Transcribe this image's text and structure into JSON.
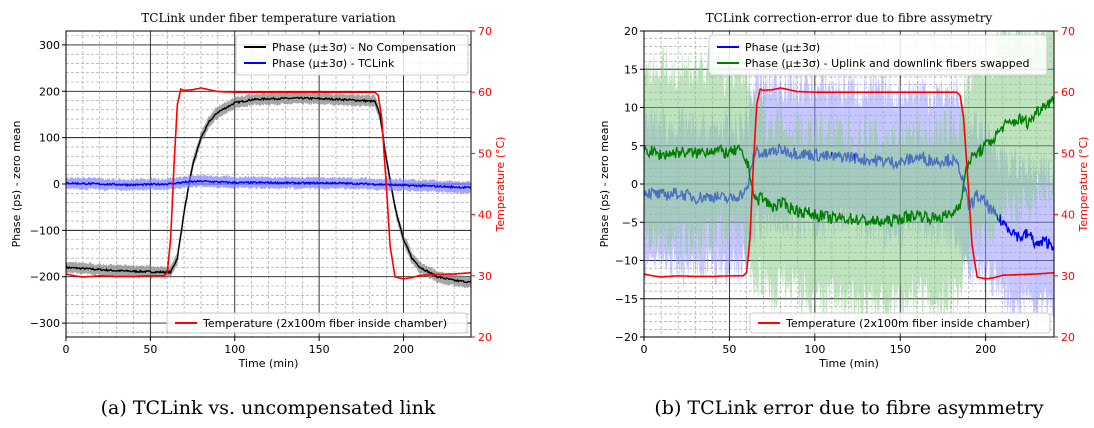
{
  "chart_data": [
    {
      "type": "line",
      "title": "TCLink under fiber temperature variation",
      "xlabel": "Time (min)",
      "ylabel": "Phase (ps) - zero mean",
      "y2label": "Temperature (°C)",
      "xlim": [
        0,
        240
      ],
      "ylim": [
        -330,
        330
      ],
      "y2lim": [
        20,
        70
      ],
      "xticks": [
        "0",
        "50",
        "100",
        "150",
        "200"
      ],
      "yticks": [
        "−300",
        "−200",
        "−100",
        "0",
        "100",
        "200",
        "300"
      ],
      "y2ticks": [
        "20",
        "30",
        "40",
        "50",
        "60",
        "70"
      ],
      "grid": true,
      "legend_upper": "upper right",
      "legend_lower": "lower right",
      "caption": "(a) TCLink vs. uncompensated link",
      "series": [
        {
          "name": "Phase (μ±3σ) - No Compensation",
          "color": "#000000",
          "band": 12,
          "band_color": "#808080",
          "axis": "left",
          "x": [
            0,
            30,
            55,
            62,
            66,
            70,
            75,
            80,
            85,
            90,
            100,
            110,
            120,
            140,
            160,
            175,
            183,
            186,
            190,
            195,
            200,
            205,
            210,
            220,
            230,
            240
          ],
          "y": [
            -180,
            -187,
            -190,
            -190,
            -160,
            -60,
            40,
            100,
            135,
            155,
            175,
            182,
            184,
            185,
            183,
            180,
            178,
            150,
            50,
            -50,
            -120,
            -160,
            -180,
            -200,
            -208,
            -212
          ]
        },
        {
          "name": "Phase (μ±3σ) - TCLink",
          "color": "#0000ff",
          "band": 12,
          "band_color": "#8080ff",
          "axis": "left",
          "x": [
            0,
            20,
            40,
            60,
            70,
            80,
            100,
            120,
            140,
            160,
            180,
            200,
            220,
            240
          ],
          "y": [
            2,
            0,
            -2,
            0,
            4,
            6,
            3,
            3,
            2,
            2,
            0,
            -3,
            -5,
            -8
          ]
        },
        {
          "name": "Temperature (2x100m fiber inside chamber)",
          "color": "#ff0000",
          "axis": "right",
          "x": [
            0,
            5,
            10,
            20,
            30,
            40,
            50,
            58,
            60,
            62,
            64,
            66,
            68,
            70,
            75,
            80,
            90,
            100,
            120,
            140,
            160,
            175,
            183,
            185,
            187,
            190,
            192,
            195,
            200,
            205,
            210,
            220,
            230,
            240
          ],
          "y": [
            30.3,
            30.0,
            29.8,
            30.0,
            29.9,
            29.9,
            30.0,
            30.0,
            30.5,
            36,
            48,
            58,
            60.5,
            60.3,
            60.4,
            60.7,
            60.1,
            60.0,
            60.0,
            60.0,
            60.0,
            60.0,
            60.0,
            59.5,
            56,
            44,
            35,
            29.8,
            29.5,
            29.7,
            30.1,
            30.2,
            30.3,
            30.5
          ]
        }
      ]
    },
    {
      "type": "line",
      "title": "TCLink correction-error due to fibre assymetry",
      "xlabel": "Time (min)",
      "ylabel": "Phase (ps) - zero mean",
      "y2label": "Temperature (°C)",
      "xlim": [
        0,
        240
      ],
      "ylim": [
        -20,
        20
      ],
      "y2lim": [
        20,
        70
      ],
      "xticks": [
        "0",
        "50",
        "100",
        "150",
        "200"
      ],
      "yticks": [
        "−20",
        "−15",
        "−10",
        "−5",
        "0",
        "5",
        "10",
        "15",
        "20"
      ],
      "y2ticks": [
        "20",
        "30",
        "40",
        "50",
        "60",
        "70"
      ],
      "grid": true,
      "legend_upper": "upper center",
      "legend_lower": "lower right",
      "caption": "(b) TCLink error due to fibre asymmetry",
      "series": [
        {
          "name": "Phase (μ±3σ)",
          "color": "#0000ff",
          "band": 9,
          "band_color": "#9999ff",
          "axis": "left",
          "x": [
            0,
            10,
            20,
            30,
            40,
            50,
            55,
            60,
            62,
            64,
            66,
            68,
            70,
            75,
            80,
            90,
            100,
            110,
            120,
            130,
            140,
            150,
            160,
            170,
            180,
            185,
            188,
            190,
            195,
            200,
            205,
            210,
            215,
            220,
            225,
            230,
            235,
            240
          ],
          "y": [
            -1,
            -1.5,
            -1.2,
            -1.8,
            -1.6,
            -2.0,
            -1.5,
            -1.0,
            1.0,
            3.5,
            4.5,
            4.0,
            3.8,
            4.2,
            4.5,
            4.0,
            3.8,
            3.5,
            3.6,
            3.2,
            3.0,
            2.8,
            3.5,
            3.0,
            3.2,
            2.0,
            -1.0,
            -3.0,
            -1.5,
            -2.5,
            -4.0,
            -5.0,
            -6.0,
            -7.0,
            -6.5,
            -8.0,
            -7.5,
            -8.0
          ]
        },
        {
          "name": "Phase (μ±3σ) - Uplink and downlink fibers swapped",
          "color": "#008000",
          "band": 11,
          "band_color": "#88cc88",
          "axis": "left",
          "x": [
            0,
            10,
            20,
            30,
            40,
            50,
            55,
            60,
            62,
            64,
            66,
            68,
            70,
            75,
            80,
            90,
            100,
            110,
            120,
            130,
            140,
            150,
            160,
            170,
            180,
            185,
            188,
            190,
            195,
            200,
            205,
            210,
            215,
            220,
            225,
            230,
            235,
            240
          ],
          "y": [
            4.5,
            3.8,
            4.2,
            4.0,
            4.5,
            4.0,
            4.5,
            3.0,
            1.5,
            -1.0,
            -2.5,
            -1.5,
            -2.0,
            -3.0,
            -2.5,
            -3.5,
            -4.0,
            -4.5,
            -4.5,
            -4.8,
            -5.0,
            -4.5,
            -4.0,
            -4.5,
            -4.0,
            -2.5,
            1.0,
            3.0,
            4.0,
            5.0,
            6.0,
            7.5,
            8.0,
            8.5,
            8.0,
            9.5,
            10.5,
            11.0
          ]
        },
        {
          "name": "Temperature (2x100m fiber inside chamber)",
          "color": "#ff0000",
          "axis": "right",
          "x": [
            0,
            5,
            10,
            20,
            30,
            40,
            50,
            58,
            60,
            62,
            64,
            66,
            68,
            70,
            75,
            80,
            90,
            100,
            120,
            140,
            160,
            175,
            183,
            185,
            187,
            190,
            192,
            195,
            200,
            205,
            210,
            220,
            230,
            240
          ],
          "y": [
            30.3,
            30.0,
            29.8,
            30.0,
            29.9,
            29.9,
            30.0,
            30.0,
            30.5,
            36,
            48,
            58,
            60.5,
            60.3,
            60.4,
            60.7,
            60.1,
            60.0,
            60.0,
            60.0,
            60.0,
            60.0,
            60.0,
            59.5,
            56,
            44,
            35,
            29.8,
            29.5,
            29.7,
            30.1,
            30.2,
            30.3,
            30.5
          ]
        }
      ]
    }
  ]
}
